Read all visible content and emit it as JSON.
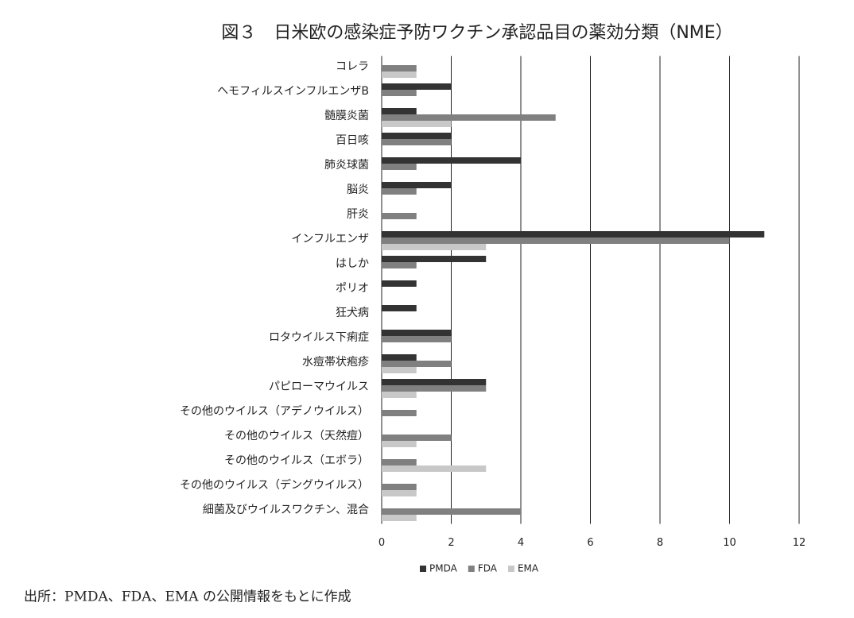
{
  "chart_data": {
    "type": "bar",
    "orientation": "horizontal",
    "title": "図３　日米欧の感染症予防ワクチン承認品目の薬効分類（NME）",
    "categories": [
      "コレラ",
      "ヘモフィルスインフルエンザB",
      "髄膜炎菌",
      "百日咳",
      "肺炎球菌",
      "脳炎",
      "肝炎",
      "インフルエンザ",
      "はしか",
      "ポリオ",
      "狂犬病",
      "ロタウイルス下痢症",
      "水痘帯状疱疹",
      "パピローマウイルス",
      "その他のウイルス（アデノウイルス）",
      "その他のウイルス（天然痘）",
      "その他のウイルス（エボラ）",
      "その他のウイルス（デングウイルス）",
      "細菌及びウイルスワクチン、混合"
    ],
    "series": [
      {
        "name": "PMDA",
        "color": "#333333",
        "values": [
          0,
          2,
          1,
          2,
          4,
          2,
          0,
          11,
          3,
          1,
          1,
          2,
          1,
          3,
          0,
          0,
          0,
          0,
          0
        ]
      },
      {
        "name": "FDA",
        "color": "#808080",
        "values": [
          1,
          1,
          5,
          2,
          1,
          1,
          1,
          10,
          1,
          0,
          0,
          2,
          2,
          3,
          1,
          2,
          1,
          1,
          4
        ]
      },
      {
        "name": "EMA",
        "color": "#c8c8c8",
        "values": [
          1,
          0,
          2,
          0,
          0,
          0,
          0,
          3,
          0,
          0,
          0,
          0,
          1,
          1,
          0,
          1,
          3,
          1,
          1
        ]
      }
    ],
    "xlim": [
      0,
      12
    ],
    "xticks": [
      0,
      2,
      4,
      6,
      8,
      10,
      12
    ],
    "grid": true,
    "legend": "bottom",
    "note": "出所：PMDA、FDA、EMA の公開情報をもとに作成"
  }
}
